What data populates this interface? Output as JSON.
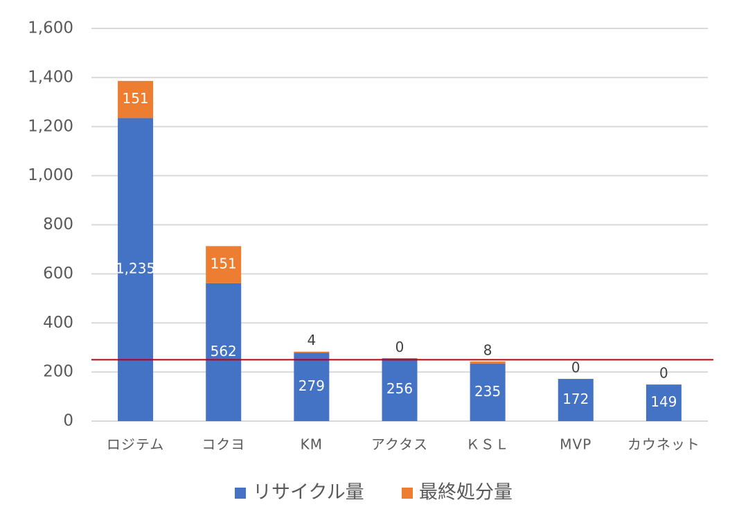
{
  "chart_data": {
    "type": "bar",
    "stacked": true,
    "categories": [
      "ロジテム",
      "コクヨ",
      "KM",
      "アクタス",
      "ＫＳＬ",
      "MVP",
      "カウネット"
    ],
    "series": [
      {
        "name": "リサイクル量",
        "color": "#4472C4",
        "values": [
          1235,
          562,
          279,
          256,
          235,
          172,
          149
        ],
        "labels": [
          "1,235",
          "562",
          "279",
          "256",
          "235",
          "172",
          "149"
        ]
      },
      {
        "name": "最終処分量",
        "color": "#ED7D31",
        "values": [
          151,
          151,
          4,
          0,
          8,
          0,
          0
        ],
        "labels": [
          "151",
          "151",
          "4",
          "0",
          "8",
          "0",
          "0"
        ]
      }
    ],
    "ylim": [
      0,
      1600
    ],
    "yticks": [
      0,
      200,
      400,
      600,
      800,
      1000,
      1200,
      1400,
      1600
    ],
    "ytick_labels": [
      "0",
      "200",
      "400",
      "600",
      "800",
      "1,000",
      "1,200",
      "1,400",
      "1,600"
    ],
    "reference_line": {
      "value": 250,
      "color": "#C00000"
    },
    "grid": true,
    "gridline_color": "#D9D9D9",
    "legend_position": "bottom"
  }
}
